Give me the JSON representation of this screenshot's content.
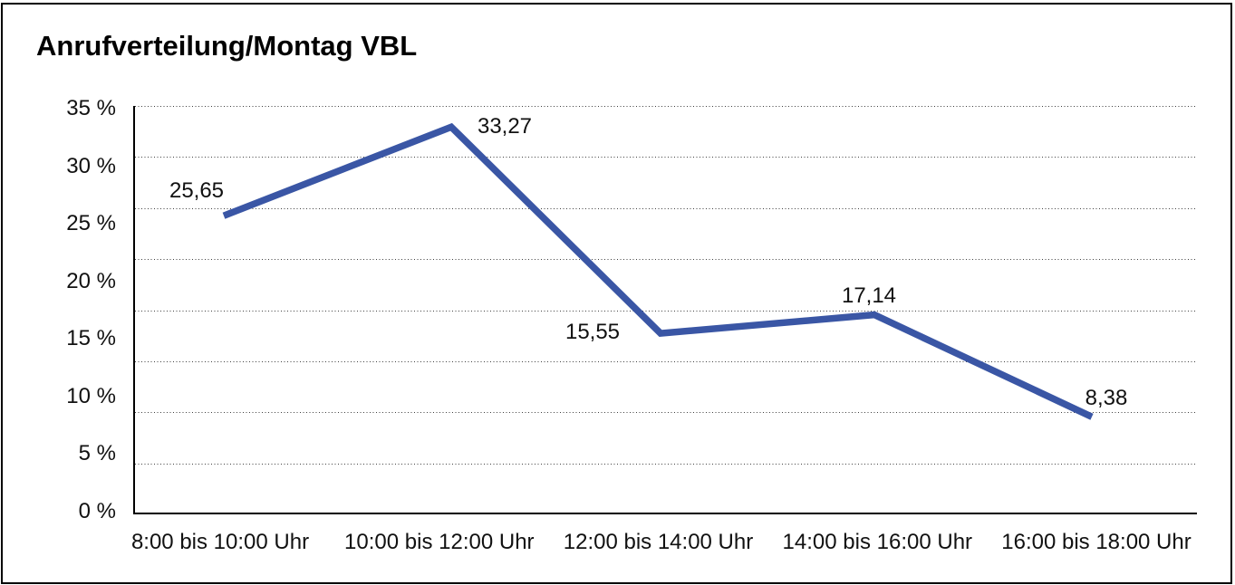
{
  "chart_data": {
    "type": "line",
    "title": "Anrufverteilung/Montag VBL",
    "categories": [
      "8:00 bis 10:00 Uhr",
      "10:00 bis 12:00 Uhr",
      "12:00 bis 14:00 Uhr",
      "14:00 bis 16:00 Uhr",
      "16:00 bis 18:00 Uhr"
    ],
    "values": [
      25.65,
      33.27,
      15.55,
      17.14,
      8.38
    ],
    "value_labels": [
      "25,65",
      "33,27",
      "15,55",
      "17,14",
      "8,38"
    ],
    "y_tick_labels": [
      "35 %",
      "30 %",
      "25 %",
      "20 %",
      "15 %",
      "10 %",
      "5 %",
      "0 %"
    ],
    "y_tick_values": [
      35,
      30,
      25,
      20,
      15,
      10,
      5,
      0
    ],
    "ylim": [
      0,
      35
    ],
    "xlabel": "",
    "ylabel": "",
    "grid": "horizontal dotted",
    "legend": "none",
    "line_color": "#3A56A5",
    "axis_color": "#000000",
    "text_color": "#111111",
    "background": "#ffffff"
  }
}
